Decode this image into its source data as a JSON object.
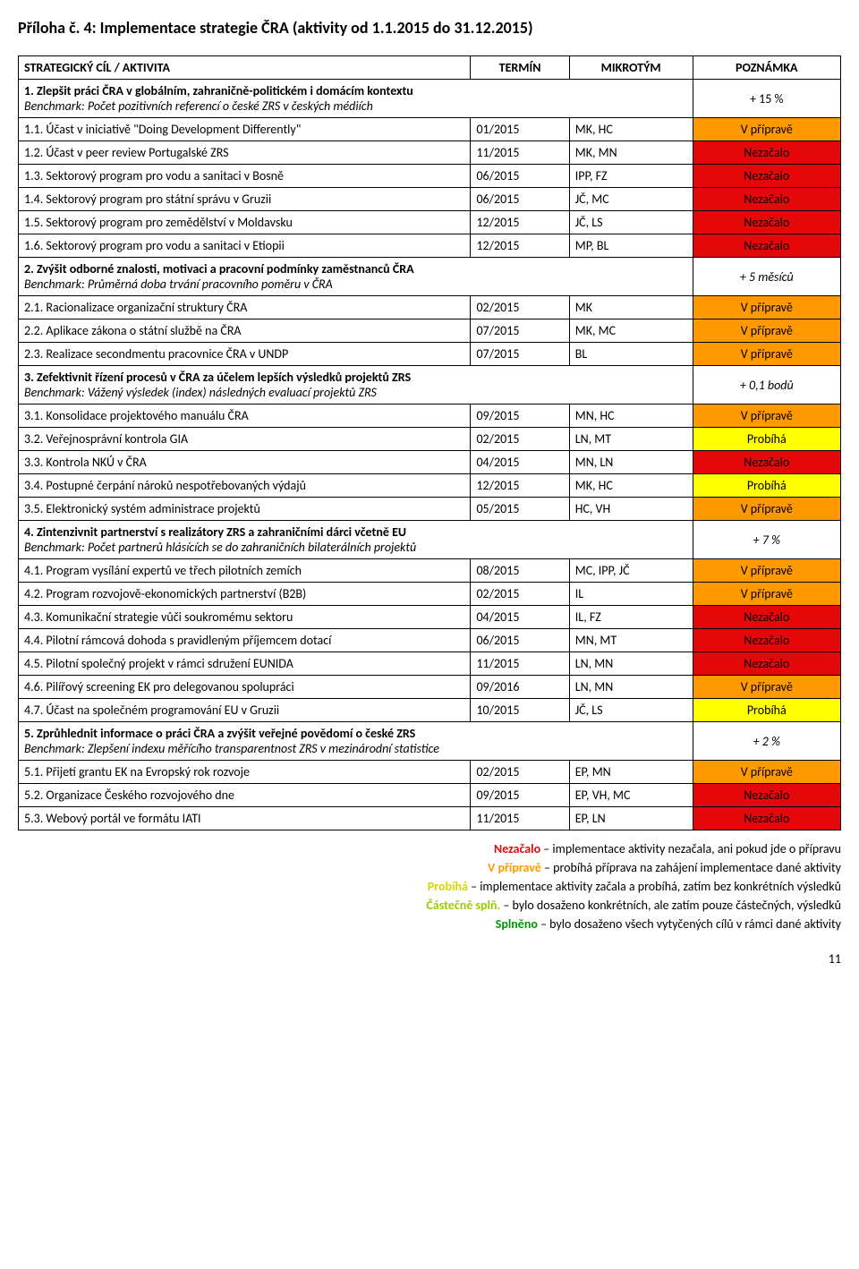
{
  "title": "Příloha č. 4: Implementace strategie ČRA (aktivity od 1.1.2015 do 31.12.2015)",
  "header": {
    "c1": "STRATEGICKÝ CÍL / AKTIVITA",
    "c2": "TERMÍN",
    "c3": "MIKROTÝM",
    "c4": "POZNÁMKA"
  },
  "status_colors": {
    "Nezačalo": {
      "bg": "#e4080a",
      "fg": "#000000"
    },
    "V přípravě": {
      "bg": "#ff9900",
      "fg": "#000000"
    },
    "Probíhá": {
      "bg": "#ffff00",
      "fg": "#000000"
    },
    "Částečně splň.": {
      "bg": "#99cc00",
      "fg": "#000000"
    },
    "Splněno": {
      "bg": "#009900",
      "fg": "#000000"
    }
  },
  "legend_colors": {
    "Nezačalo": "#e4080a",
    "V přípravě": "#ff9900",
    "Probíhá": "#d6d600",
    "Částečně splň.": "#99cc00",
    "Splněno": "#009900"
  },
  "sections": [
    {
      "title": "1. Zlepšit práci ČRA v globálním, zahraničně-politickém i domácím kontextu",
      "benchmark": "Benchmark: Počet pozitivních referencí o české ZRS v českých médiích",
      "note": "+ 15 %",
      "rows": [
        {
          "a": "1.1. Účast v iniciativě \"Doing Development Differently\"",
          "t": "01/2015",
          "m": "MK, HC",
          "s": "V přípravě"
        },
        {
          "a": "1.2. Účast v peer review Portugalské ZRS",
          "t": "11/2015",
          "m": "MK, MN",
          "s": "Nezačalo"
        },
        {
          "a": "1.3. Sektorový program pro vodu a sanitaci v Bosně",
          "t": "06/2015",
          "m": "IPP, FZ",
          "s": "Nezačalo"
        },
        {
          "a": "1.4. Sektorový program pro státní správu v Gruzii",
          "t": "06/2015",
          "m": "JČ, MC",
          "s": "Nezačalo"
        },
        {
          "a": "1.5. Sektorový program pro zemědělství v Moldavsku",
          "t": "12/2015",
          "m": "JČ, LS",
          "s": "Nezačalo"
        },
        {
          "a": "1.6. Sektorový program pro vodu a sanitaci v Etiopii",
          "t": "12/2015",
          "m": "MP, BL",
          "s": "Nezačalo"
        }
      ]
    },
    {
      "title": "2. Zvýšit odborné znalosti, motivaci a pracovní podmínky zaměstnanců ČRA",
      "benchmark": "Benchmark:  Průměrná doba trvání pracovního poměru v ČRA",
      "note": "+ 5 měsíců",
      "note_italic": true,
      "rows": [
        {
          "a": "2.1. Racionalizace organizační struktury ČRA",
          "t": "02/2015",
          "m": "MK",
          "s": "V přípravě"
        },
        {
          "a": "2.2. Aplikace zákona o státní službě na ČRA",
          "t": "07/2015",
          "m": "MK, MC",
          "s": "V přípravě"
        },
        {
          "a": "2.3. Realizace secondmentu pracovnice ČRA v UNDP",
          "t": "07/2015",
          "m": "BL",
          "s": "V přípravě"
        }
      ]
    },
    {
      "title": "3. Zefektivnit řízení procesů v ČRA za účelem lepších výsledků projektů ZRS",
      "benchmark": "Benchmark: Vážený výsledek (index) následných evaluací projektů ZRS",
      "note": "+ 0,1 bodů",
      "note_italic": true,
      "rows": [
        {
          "a": "3.1. Konsolidace projektového manuálu ČRA",
          "t": "09/2015",
          "m": "MN, HC",
          "s": "V přípravě"
        },
        {
          "a": "3.2. Veřejnosprávní kontrola GIA",
          "t": "02/2015",
          "m": "LN, MT",
          "s": "Probíhá"
        },
        {
          "a": "3.3. Kontrola NKÚ v ČRA",
          "t": "04/2015",
          "m": "MN, LN",
          "s": "Nezačalo"
        },
        {
          "a": "3.4. Postupné čerpání nároků nespotřebovaných výdajů",
          "t": "12/2015",
          "m": "MK, HC",
          "s": "Probíhá"
        },
        {
          "a": "3.5. Elektronický systém administrace projektů",
          "t": "05/2015",
          "m": "HC, VH",
          "s": "V přípravě"
        }
      ]
    },
    {
      "title": "4. Zintenzivnit partnerství s realizátory ZRS a zahraničními dárci včetně EU",
      "benchmark": "Benchmark: Počet partnerů hlásících se do zahraničních bilaterálních projektů",
      "note": "+ 7 %",
      "note_italic": true,
      "rows": [
        {
          "a": "4.1. Program vysílání expertů ve třech pilotních zemích",
          "t": "08/2015",
          "m": "MC, IPP, JČ",
          "s": "V přípravě"
        },
        {
          "a": "4.2. Program rozvojově-ekonomických partnerství (B2B)",
          "t": "02/2015",
          "m": "IL",
          "s": "V přípravě"
        },
        {
          "a": "4.3. Komunikační strategie vůči soukromému sektoru",
          "t": "04/2015",
          "m": "IL, FZ",
          "s": "Nezačalo"
        },
        {
          "a": "4.4. Pilotní rámcová dohoda s pravidleným příjemcem dotací",
          "t": "06/2015",
          "m": "MN, MT",
          "s": "Nezačalo"
        },
        {
          "a": "4.5. Pilotní společný projekt v rámci sdružení EUNIDA",
          "t": "11/2015",
          "m": "LN, MN",
          "s": "Nezačalo"
        },
        {
          "a": "4.6. Pilířový screening EK pro delegovanou spolupráci",
          "t": "09/2016",
          "m": "LN, MN",
          "s": "V přípravě"
        },
        {
          "a": "4.7. Účast na společném programování EU v Gruzii",
          "t": "10/2015",
          "m": "JČ, LS",
          "s": "Probíhá"
        }
      ]
    },
    {
      "title": "5. Zprůhlednit informace o práci ČRA a zvýšit veřejné povědomí o české ZRS",
      "benchmark": "Benchmark: Zlepšení indexu měřícího transparentnost ZRS v mezinárodní statistice",
      "note": "+ 2 %",
      "note_italic": true,
      "rows": [
        {
          "a": "5.1. Přijetí grantu EK na Evropský rok rozvoje",
          "t": "02/2015",
          "m": "EP, MN",
          "s": "V přípravě"
        },
        {
          "a": "5.2. Organizace Českého rozvojového dne",
          "t": "09/2015",
          "m": "EP, VH, MC",
          "s": "Nezačalo"
        },
        {
          "a": "5.3. Webový portál ve formátu IATI",
          "t": "11/2015",
          "m": "EP, LN",
          "s": "Nezačalo"
        }
      ]
    }
  ],
  "legend": [
    {
      "term": "Nezačalo",
      "text": " – implementace aktivity nezačala, ani pokud jde o přípravu"
    },
    {
      "term": "V přípravě",
      "text": " – probíhá příprava na zahájení implementace dané aktivity"
    },
    {
      "term": "Probíhá",
      "text": " – implementace aktivity začala a probíhá, zatím bez konkrétních výsledků"
    },
    {
      "term": "Částečně splň.",
      "text": " – bylo dosaženo konkrétních, ale zatím pouze částečných, výsledků"
    },
    {
      "term": "Splněno",
      "text": " – bylo dosaženo všech vytyčených cílů v rámci dané aktivity"
    }
  ],
  "page_number": "11"
}
